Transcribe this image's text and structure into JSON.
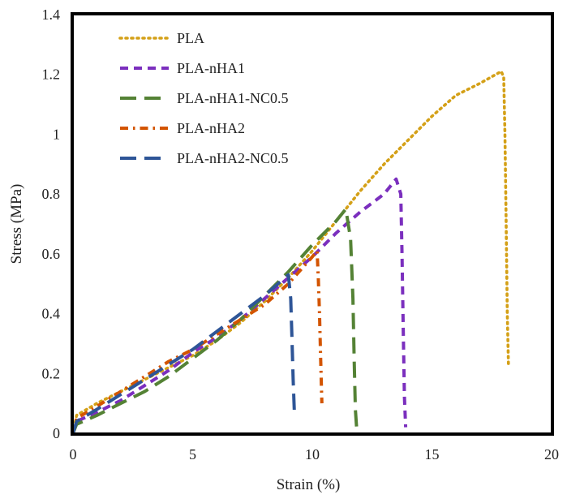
{
  "chart_data": {
    "type": "line",
    "title": "",
    "xlabel": "Strain (%)",
    "ylabel": "Stress (MPa)",
    "xlim": [
      0,
      20
    ],
    "ylim": [
      0,
      1.4
    ],
    "xticks": [
      0,
      5,
      10,
      15,
      20
    ],
    "yticks": [
      0,
      0.2,
      0.4,
      0.6,
      0.8,
      1,
      1.2,
      1.4
    ],
    "xtick_labels": [
      "0",
      "5",
      "10",
      "15",
      "20"
    ],
    "ytick_labels": [
      "0",
      "0.2",
      "0.4",
      "0.6",
      "0.8",
      "1",
      "1.2",
      "1.4"
    ],
    "grid": false,
    "legend_position": "top-left",
    "series": [
      {
        "name": "PLA",
        "color": "#D4A017",
        "style": "dotted",
        "x": [
          0,
          0.15,
          1,
          2,
          3,
          4,
          5,
          6,
          7,
          8,
          9,
          10,
          11,
          12,
          13,
          14,
          15,
          16,
          17,
          17.9,
          18.0,
          18.05,
          18.1,
          18.15,
          18.2
        ],
        "y": [
          0,
          0.06,
          0.1,
          0.14,
          0.18,
          0.22,
          0.26,
          0.31,
          0.37,
          0.44,
          0.52,
          0.61,
          0.71,
          0.81,
          0.9,
          0.98,
          1.06,
          1.13,
          1.17,
          1.21,
          1.19,
          1.0,
          0.7,
          0.4,
          0.22
        ]
      },
      {
        "name": "PLA-nHA1",
        "color": "#7B2FBE",
        "style": "dashed",
        "x": [
          0,
          0.15,
          1,
          2,
          3,
          4,
          5,
          6,
          7,
          8,
          9,
          10,
          11,
          12,
          13,
          13.5,
          13.7,
          13.75,
          13.8,
          13.85,
          13.9
        ],
        "y": [
          0,
          0.04,
          0.07,
          0.11,
          0.16,
          0.21,
          0.27,
          0.32,
          0.38,
          0.45,
          0.52,
          0.59,
          0.67,
          0.74,
          0.8,
          0.85,
          0.8,
          0.6,
          0.35,
          0.12,
          0.02
        ]
      },
      {
        "name": "PLA-nHA1-NC0.5",
        "color": "#548235",
        "style": "long-dash",
        "x": [
          0,
          0.15,
          1,
          2,
          3,
          4,
          5,
          6,
          7,
          8,
          9,
          10,
          11,
          11.4,
          11.6,
          11.7,
          11.75,
          11.8,
          11.85
        ],
        "y": [
          0,
          0.03,
          0.06,
          0.1,
          0.14,
          0.19,
          0.25,
          0.31,
          0.38,
          0.46,
          0.54,
          0.63,
          0.71,
          0.75,
          0.65,
          0.45,
          0.25,
          0.08,
          0.02
        ]
      },
      {
        "name": "PLA-nHA2",
        "color": "#D35400",
        "style": "dash-dot",
        "x": [
          0,
          0.15,
          1,
          2,
          3,
          4,
          5,
          6,
          7,
          8,
          9,
          10,
          10.2,
          10.25,
          10.3,
          10.35,
          10.4
        ],
        "y": [
          0,
          0.05,
          0.09,
          0.14,
          0.19,
          0.24,
          0.28,
          0.33,
          0.38,
          0.43,
          0.5,
          0.59,
          0.61,
          0.52,
          0.4,
          0.25,
          0.1
        ]
      },
      {
        "name": "PLA-nHA2-NC0.5",
        "color": "#2E5597",
        "style": "long-dash",
        "x": [
          0,
          0.15,
          1,
          2,
          3,
          4,
          5,
          6,
          7,
          8,
          9,
          9.1,
          9.15,
          9.2,
          9.25
        ],
        "y": [
          0,
          0.04,
          0.08,
          0.13,
          0.18,
          0.23,
          0.28,
          0.34,
          0.4,
          0.46,
          0.53,
          0.45,
          0.32,
          0.18,
          0.07
        ]
      }
    ]
  }
}
